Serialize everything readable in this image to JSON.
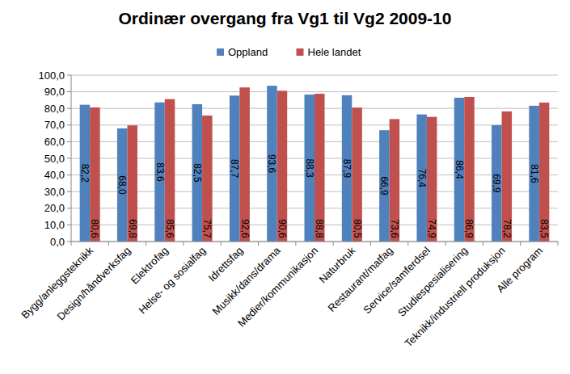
{
  "chart_data": {
    "type": "bar",
    "title": "Ordinær overgang fra Vg1 til Vg2 2009-10",
    "categories": [
      "Bygg/anleggsteknikk",
      "Design/håndverksfag",
      "Elektrofag",
      "Helse- og sosialfag",
      "Idrettsfag",
      "Musikk/dans/drama",
      "Medier/kommunikasjon",
      "Naturbruk",
      "Restaurant/matfag",
      "Service/samferdsel",
      "Studiespesialisering",
      "Teknikk/industriell produksjon",
      "Alle program"
    ],
    "series": [
      {
        "name": "Oppland",
        "color": "#4f81bd",
        "values": [
          82.2,
          68.0,
          83.6,
          82.5,
          87.7,
          93.6,
          88.3,
          87.9,
          66.9,
          76.4,
          86.4,
          69.9,
          81.6
        ],
        "value_labels": [
          "82,2",
          "68,0",
          "83,6",
          "82,5",
          "87,7",
          "93,6",
          "88,3",
          "87,9",
          "66,9",
          "76,4",
          "86,4",
          "69,9",
          "81,6"
        ]
      },
      {
        "name": "Hele landet",
        "color": "#c0504d",
        "values": [
          80.6,
          69.8,
          85.6,
          75.7,
          92.6,
          90.6,
          88.8,
          80.5,
          73.6,
          74.9,
          86.9,
          78.2,
          83.5
        ],
        "value_labels": [
          "80,6",
          "69,8",
          "85,6",
          "75,7",
          "92,6",
          "90,6",
          "88,8",
          "80,5",
          "73,6",
          "74,9",
          "86,9",
          "78,2",
          "83,5"
        ]
      }
    ],
    "ylim": [
      0,
      100
    ],
    "yticks": [
      {
        "value": 0,
        "label": "0,0"
      },
      {
        "value": 10,
        "label": "10,0"
      },
      {
        "value": 20,
        "label": "20,0"
      },
      {
        "value": 30,
        "label": "30,0"
      },
      {
        "value": 40,
        "label": "40,0"
      },
      {
        "value": 50,
        "label": "50,0"
      },
      {
        "value": 60,
        "label": "60,0"
      },
      {
        "value": 70,
        "label": "70,0"
      },
      {
        "value": 80,
        "label": "80,0"
      },
      {
        "value": 90,
        "label": "90,0"
      },
      {
        "value": 100,
        "label": "100,0"
      }
    ],
    "grid": true,
    "legend": "top",
    "data_labels": true
  }
}
